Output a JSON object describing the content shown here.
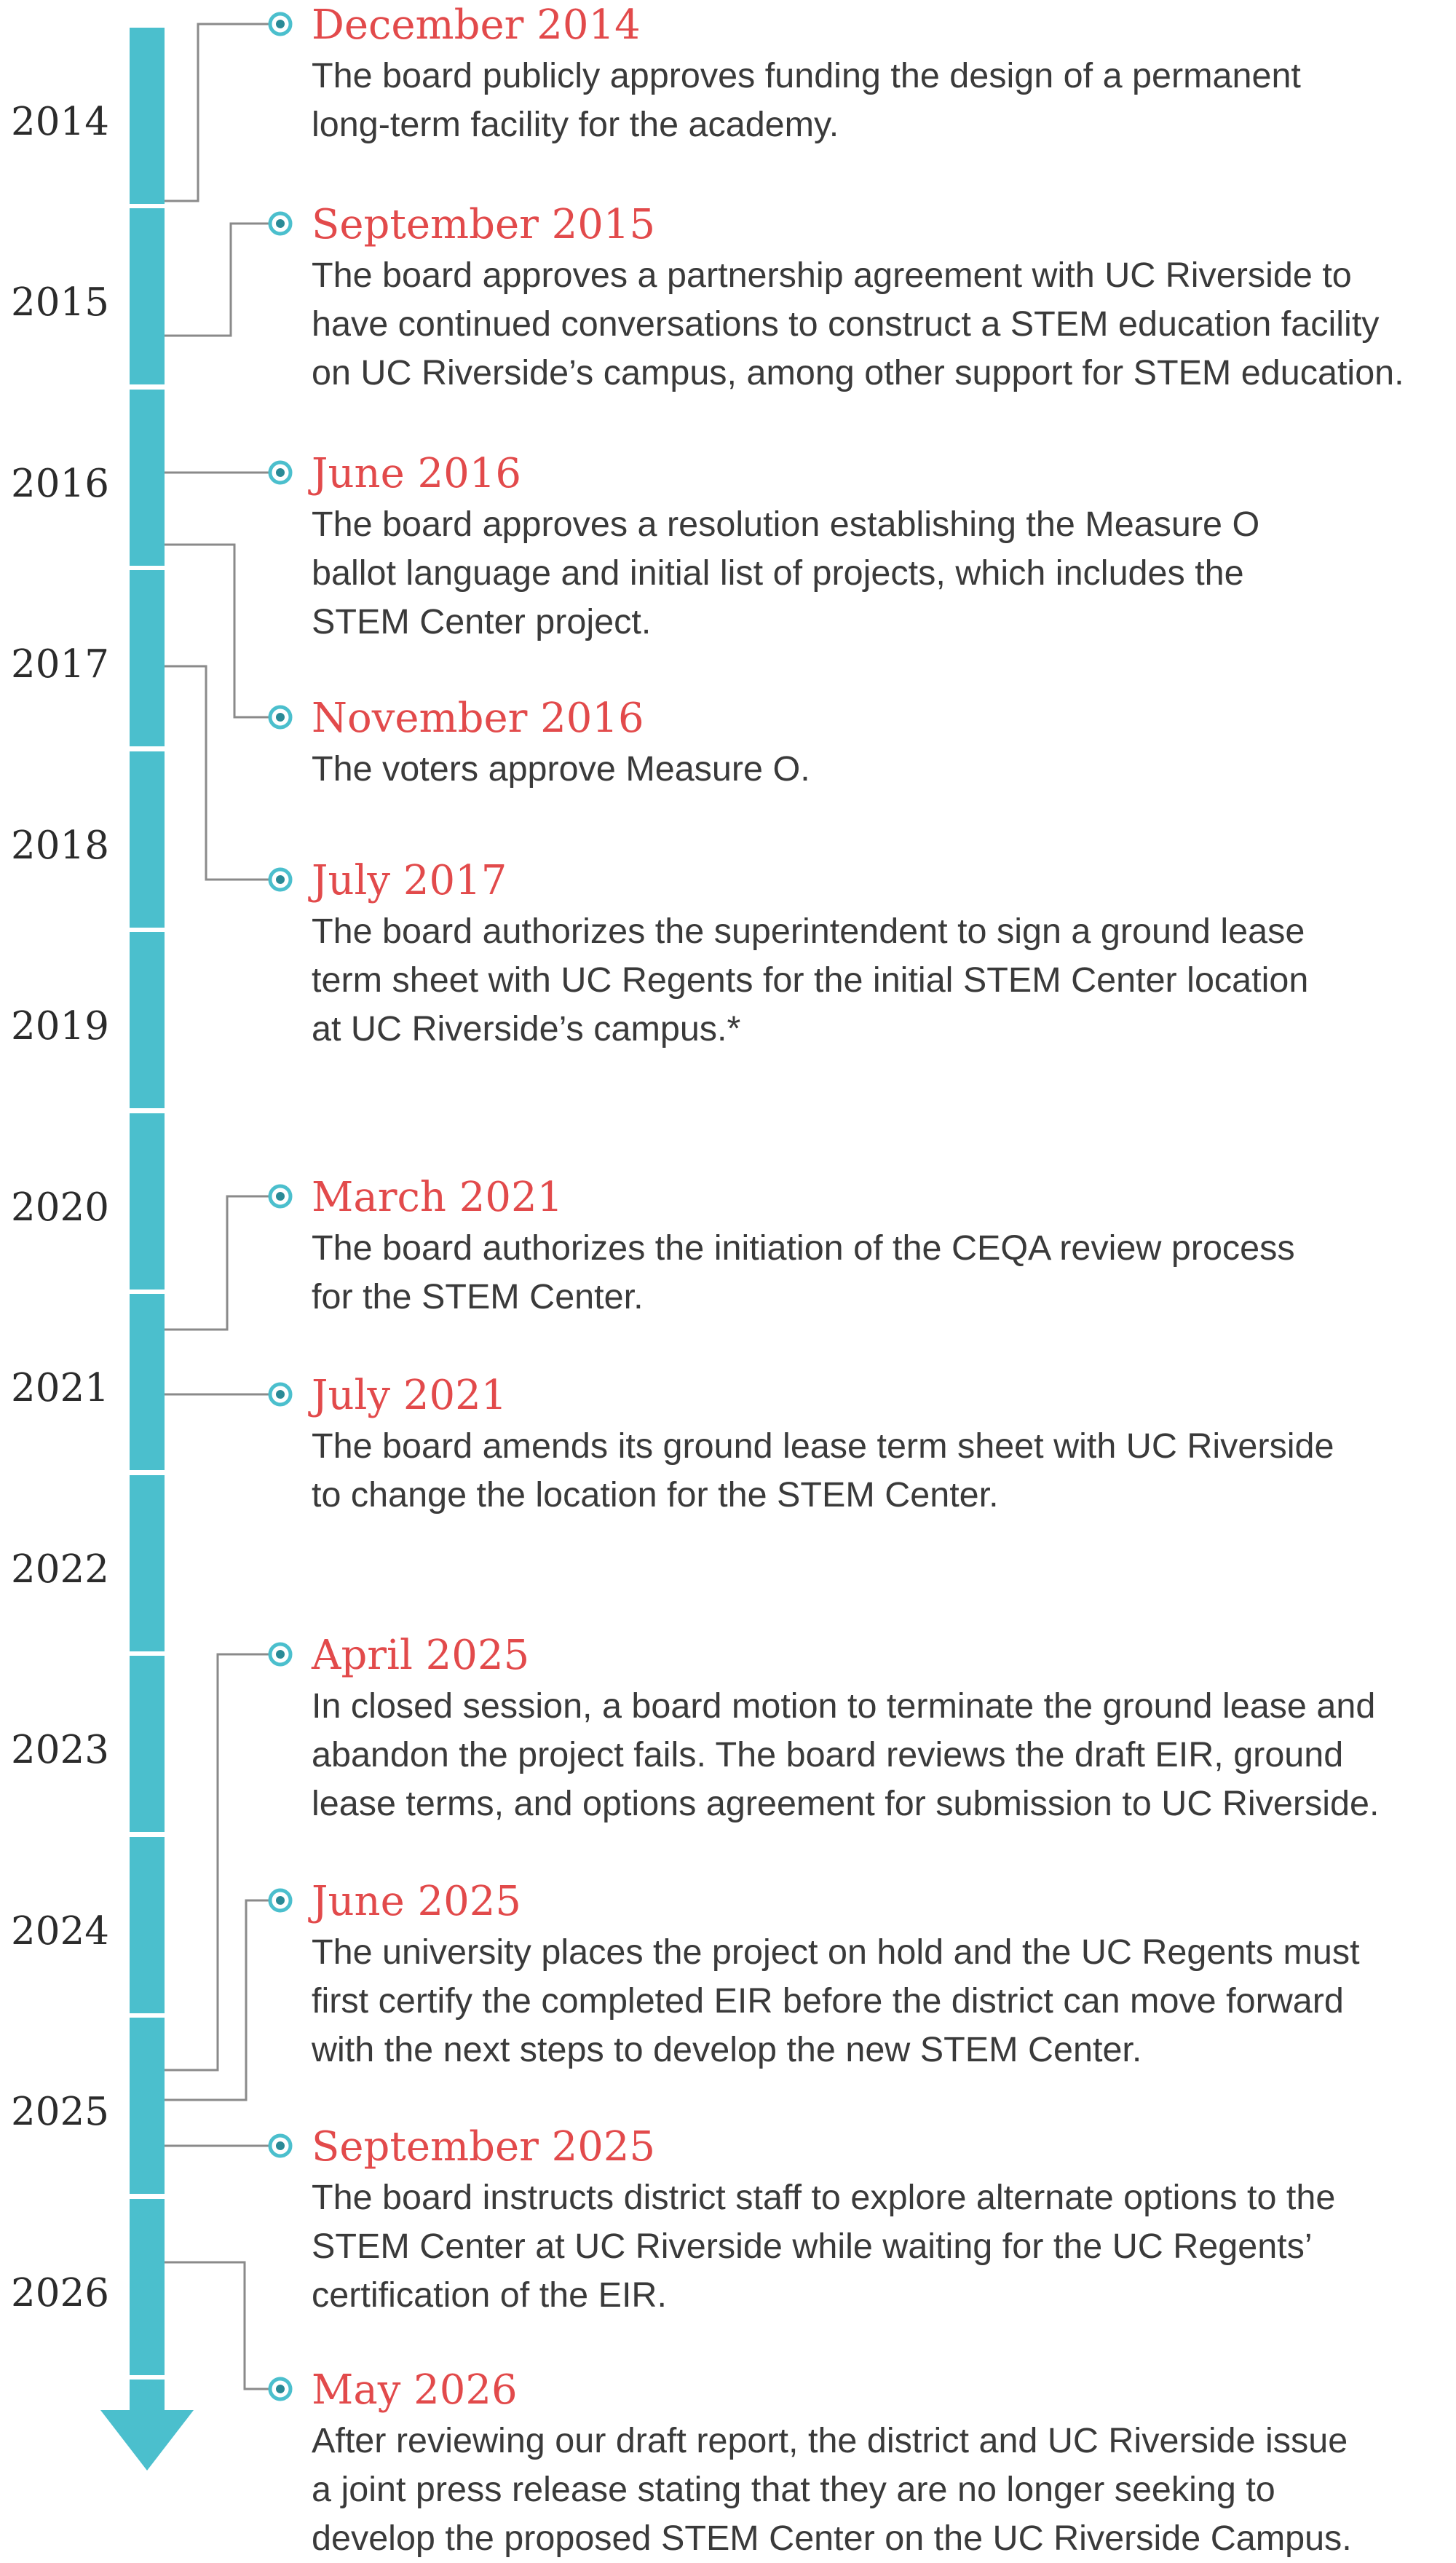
{
  "colors": {
    "axis": "#4bbfcd",
    "connector": "#8a8a8a",
    "date": "#e24a4b",
    "text": "#3a3a3a"
  },
  "years": [
    "2014",
    "2015",
    "2016",
    "2017",
    "2018",
    "2019",
    "2020",
    "2021",
    "2022",
    "2023",
    "2024",
    "2025",
    "2026"
  ],
  "events": [
    {
      "date": "December 2014",
      "lines": [
        "The board publicly approves funding the design of a permanent",
        "long-term facility for the academy."
      ]
    },
    {
      "date": "September 2015",
      "lines": [
        "The board approves a partnership agreement with UC Riverside to",
        "have continued conversations to construct a STEM education facility",
        "on UC Riverside’s campus, among other support for STEM education."
      ]
    },
    {
      "date": "June 2016",
      "lines": [
        "The board approves a resolution establishing the Measure O",
        "ballot language and initial list of projects, which includes the",
        "STEM Center project."
      ]
    },
    {
      "date": "November 2016",
      "lines": [
        "The voters approve Measure O."
      ]
    },
    {
      "date": "July 2017",
      "lines": [
        "The board authorizes the superintendent to sign a ground lease",
        "term sheet with UC Regents for the initial STEM Center location",
        "at UC Riverside’s campus.*"
      ]
    },
    {
      "date": "March 2021",
      "lines": [
        "The board authorizes the initiation of the CEQA review process",
        "for the STEM Center."
      ]
    },
    {
      "date": "July 2021",
      "lines": [
        "The board amends its ground lease term sheet with UC Riverside",
        "to change the location for the STEM Center."
      ]
    },
    {
      "date": "April 2025",
      "lines": [
        "In closed session, a board motion to terminate the ground lease and",
        "abandon the project fails. The board reviews the draft EIR, ground",
        "lease terms, and options agreement for submission to UC Riverside."
      ]
    },
    {
      "date": "June 2025",
      "lines": [
        "The university places the project on hold and the UC Regents must",
        "first certify the completed EIR before the district can move forward",
        "with the next steps to develop the new STEM Center."
      ]
    },
    {
      "date": "September 2025",
      "lines": [
        "The board instructs district staff to explore alternate options to the",
        "STEM Center at UC Riverside while waiting for the UC Regents’",
        "certification of the EIR."
      ]
    },
    {
      "date": "May 2026",
      "lines": [
        "After reviewing our draft report, the district and UC Riverside issue",
        "a joint press release stating that they are no longer seeking to",
        "develop the proposed STEM Center on the UC Riverside Campus."
      ]
    }
  ]
}
